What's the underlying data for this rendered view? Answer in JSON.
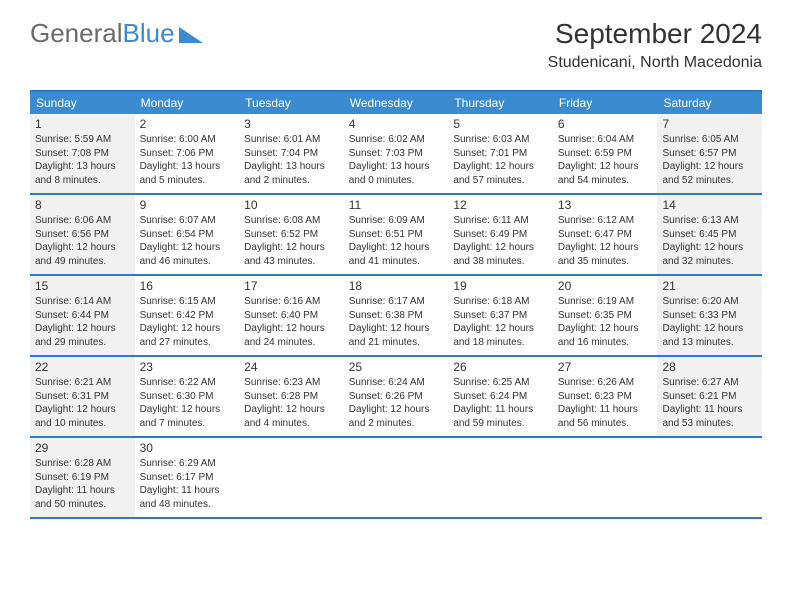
{
  "logo": {
    "part1": "General",
    "part2": "Blue"
  },
  "title": "September 2024",
  "location": "Studenicani, North Macedonia",
  "colors": {
    "header_bg": "#3a8bd0",
    "border": "#2f7bc1",
    "shaded": "#f1f1f1",
    "text": "#333333",
    "logo_gray": "#6b6b6b",
    "logo_blue": "#3a8bd0"
  },
  "day_headers": [
    "Sunday",
    "Monday",
    "Tuesday",
    "Wednesday",
    "Thursday",
    "Friday",
    "Saturday"
  ],
  "weeks": [
    [
      {
        "num": "1",
        "shaded": true,
        "sunrise": "Sunrise: 5:59 AM",
        "sunset": "Sunset: 7:08 PM",
        "daylight": "Daylight: 13 hours and 8 minutes."
      },
      {
        "num": "2",
        "shaded": false,
        "sunrise": "Sunrise: 6:00 AM",
        "sunset": "Sunset: 7:06 PM",
        "daylight": "Daylight: 13 hours and 5 minutes."
      },
      {
        "num": "3",
        "shaded": false,
        "sunrise": "Sunrise: 6:01 AM",
        "sunset": "Sunset: 7:04 PM",
        "daylight": "Daylight: 13 hours and 2 minutes."
      },
      {
        "num": "4",
        "shaded": false,
        "sunrise": "Sunrise: 6:02 AM",
        "sunset": "Sunset: 7:03 PM",
        "daylight": "Daylight: 13 hours and 0 minutes."
      },
      {
        "num": "5",
        "shaded": false,
        "sunrise": "Sunrise: 6:03 AM",
        "sunset": "Sunset: 7:01 PM",
        "daylight": "Daylight: 12 hours and 57 minutes."
      },
      {
        "num": "6",
        "shaded": false,
        "sunrise": "Sunrise: 6:04 AM",
        "sunset": "Sunset: 6:59 PM",
        "daylight": "Daylight: 12 hours and 54 minutes."
      },
      {
        "num": "7",
        "shaded": true,
        "sunrise": "Sunrise: 6:05 AM",
        "sunset": "Sunset: 6:57 PM",
        "daylight": "Daylight: 12 hours and 52 minutes."
      }
    ],
    [
      {
        "num": "8",
        "shaded": true,
        "sunrise": "Sunrise: 6:06 AM",
        "sunset": "Sunset: 6:56 PM",
        "daylight": "Daylight: 12 hours and 49 minutes."
      },
      {
        "num": "9",
        "shaded": false,
        "sunrise": "Sunrise: 6:07 AM",
        "sunset": "Sunset: 6:54 PM",
        "daylight": "Daylight: 12 hours and 46 minutes."
      },
      {
        "num": "10",
        "shaded": false,
        "sunrise": "Sunrise: 6:08 AM",
        "sunset": "Sunset: 6:52 PM",
        "daylight": "Daylight: 12 hours and 43 minutes."
      },
      {
        "num": "11",
        "shaded": false,
        "sunrise": "Sunrise: 6:09 AM",
        "sunset": "Sunset: 6:51 PM",
        "daylight": "Daylight: 12 hours and 41 minutes."
      },
      {
        "num": "12",
        "shaded": false,
        "sunrise": "Sunrise: 6:11 AM",
        "sunset": "Sunset: 6:49 PM",
        "daylight": "Daylight: 12 hours and 38 minutes."
      },
      {
        "num": "13",
        "shaded": false,
        "sunrise": "Sunrise: 6:12 AM",
        "sunset": "Sunset: 6:47 PM",
        "daylight": "Daylight: 12 hours and 35 minutes."
      },
      {
        "num": "14",
        "shaded": true,
        "sunrise": "Sunrise: 6:13 AM",
        "sunset": "Sunset: 6:45 PM",
        "daylight": "Daylight: 12 hours and 32 minutes."
      }
    ],
    [
      {
        "num": "15",
        "shaded": true,
        "sunrise": "Sunrise: 6:14 AM",
        "sunset": "Sunset: 6:44 PM",
        "daylight": "Daylight: 12 hours and 29 minutes."
      },
      {
        "num": "16",
        "shaded": false,
        "sunrise": "Sunrise: 6:15 AM",
        "sunset": "Sunset: 6:42 PM",
        "daylight": "Daylight: 12 hours and 27 minutes."
      },
      {
        "num": "17",
        "shaded": false,
        "sunrise": "Sunrise: 6:16 AM",
        "sunset": "Sunset: 6:40 PM",
        "daylight": "Daylight: 12 hours and 24 minutes."
      },
      {
        "num": "18",
        "shaded": false,
        "sunrise": "Sunrise: 6:17 AM",
        "sunset": "Sunset: 6:38 PM",
        "daylight": "Daylight: 12 hours and 21 minutes."
      },
      {
        "num": "19",
        "shaded": false,
        "sunrise": "Sunrise: 6:18 AM",
        "sunset": "Sunset: 6:37 PM",
        "daylight": "Daylight: 12 hours and 18 minutes."
      },
      {
        "num": "20",
        "shaded": false,
        "sunrise": "Sunrise: 6:19 AM",
        "sunset": "Sunset: 6:35 PM",
        "daylight": "Daylight: 12 hours and 16 minutes."
      },
      {
        "num": "21",
        "shaded": true,
        "sunrise": "Sunrise: 6:20 AM",
        "sunset": "Sunset: 6:33 PM",
        "daylight": "Daylight: 12 hours and 13 minutes."
      }
    ],
    [
      {
        "num": "22",
        "shaded": true,
        "sunrise": "Sunrise: 6:21 AM",
        "sunset": "Sunset: 6:31 PM",
        "daylight": "Daylight: 12 hours and 10 minutes."
      },
      {
        "num": "23",
        "shaded": false,
        "sunrise": "Sunrise: 6:22 AM",
        "sunset": "Sunset: 6:30 PM",
        "daylight": "Daylight: 12 hours and 7 minutes."
      },
      {
        "num": "24",
        "shaded": false,
        "sunrise": "Sunrise: 6:23 AM",
        "sunset": "Sunset: 6:28 PM",
        "daylight": "Daylight: 12 hours and 4 minutes."
      },
      {
        "num": "25",
        "shaded": false,
        "sunrise": "Sunrise: 6:24 AM",
        "sunset": "Sunset: 6:26 PM",
        "daylight": "Daylight: 12 hours and 2 minutes."
      },
      {
        "num": "26",
        "shaded": false,
        "sunrise": "Sunrise: 6:25 AM",
        "sunset": "Sunset: 6:24 PM",
        "daylight": "Daylight: 11 hours and 59 minutes."
      },
      {
        "num": "27",
        "shaded": false,
        "sunrise": "Sunrise: 6:26 AM",
        "sunset": "Sunset: 6:23 PM",
        "daylight": "Daylight: 11 hours and 56 minutes."
      },
      {
        "num": "28",
        "shaded": true,
        "sunrise": "Sunrise: 6:27 AM",
        "sunset": "Sunset: 6:21 PM",
        "daylight": "Daylight: 11 hours and 53 minutes."
      }
    ],
    [
      {
        "num": "29",
        "shaded": true,
        "sunrise": "Sunrise: 6:28 AM",
        "sunset": "Sunset: 6:19 PM",
        "daylight": "Daylight: 11 hours and 50 minutes."
      },
      {
        "num": "30",
        "shaded": false,
        "sunrise": "Sunrise: 6:29 AM",
        "sunset": "Sunset: 6:17 PM",
        "daylight": "Daylight: 11 hours and 48 minutes."
      },
      {
        "empty": true
      },
      {
        "empty": true
      },
      {
        "empty": true
      },
      {
        "empty": true
      },
      {
        "empty": true
      }
    ]
  ]
}
